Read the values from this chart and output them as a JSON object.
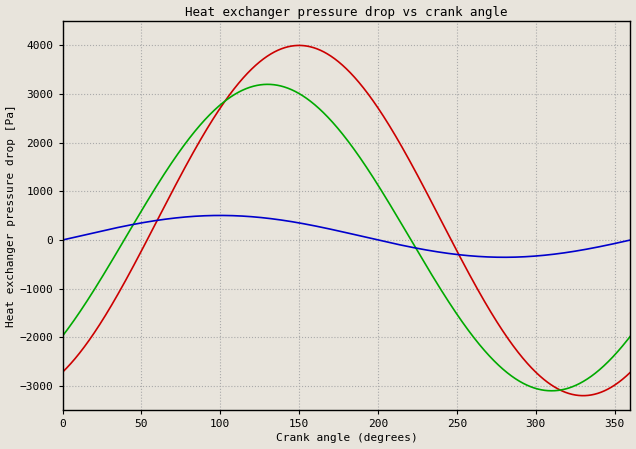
{
  "title": "Heat exchanger pressure drop vs crank angle",
  "xlabel": "Crank angle (degrees)",
  "ylabel": "Heat exchanger pressure drop [Pa]",
  "xlim": [
    0,
    360
  ],
  "ylim": [
    -3500,
    4500
  ],
  "yticks": [
    -3000,
    -2000,
    -1000,
    0,
    1000,
    2000,
    3000,
    4000
  ],
  "xticks": [
    0,
    50,
    100,
    150,
    200,
    250,
    300,
    350
  ],
  "background_color": "#e8e4dc",
  "plot_bg_color": "#e8e4dc",
  "grid_color": "#aaaaaa",
  "red_color": "#cc0000",
  "green_color": "#00aa00",
  "blue_color": "#0000cc",
  "A_red": 3600,
  "C_red": 400,
  "phi_red_deg": 60,
  "A_green": 3150,
  "C_green": 50,
  "phi_green_deg": 40,
  "A_blue": 430,
  "phi_blue_deg": 10
}
